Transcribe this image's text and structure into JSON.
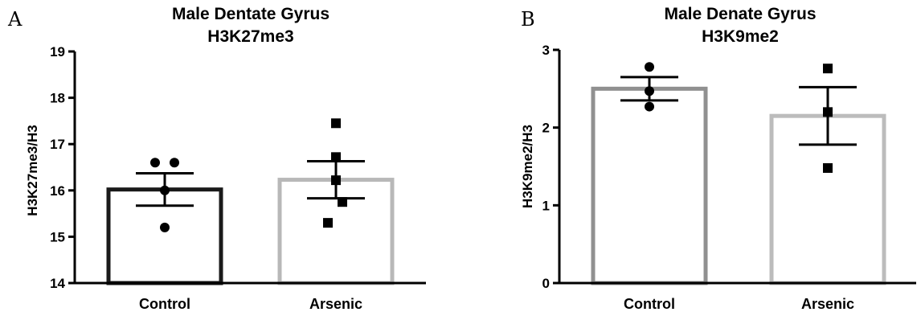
{
  "chart_data": [
    {
      "type": "bar",
      "panel_label": "A",
      "title": "Male Dentate Gyrus",
      "subtitle": "H3K27me3",
      "ylabel": "H3K27me3/H3",
      "xlabel": "",
      "ylim": [
        14,
        19
      ],
      "yticks": [
        14,
        15,
        16,
        17,
        18,
        19
      ],
      "categories": [
        "Control",
        "Arsenic"
      ],
      "values": [
        16.02,
        16.23
      ],
      "error": [
        0.35,
        0.4
      ],
      "bar_colors": [
        "#1a1a1a",
        "#b8b8b8"
      ],
      "markers": [
        "circle",
        "square"
      ],
      "points": [
        [
          16.6,
          16.6,
          16.0,
          15.2
        ],
        [
          17.45,
          16.72,
          16.22,
          15.75,
          15.3
        ]
      ]
    },
    {
      "type": "bar",
      "panel_label": "B",
      "title": "Male Denate Gyrus",
      "subtitle": "H3K9me2",
      "ylabel": "H3K9me2/H3",
      "xlabel": "",
      "ylim": [
        0,
        3
      ],
      "yticks": [
        0,
        1,
        2,
        3
      ],
      "categories": [
        "Control",
        "Arsenic"
      ],
      "values": [
        2.5,
        2.15
      ],
      "error": [
        0.15,
        0.37
      ],
      "bar_colors": [
        "#909090",
        "#bcbcbc"
      ],
      "markers": [
        "circle",
        "square"
      ],
      "points": [
        [
          2.78,
          2.47,
          2.27
        ],
        [
          2.76,
          2.2,
          1.48
        ]
      ]
    }
  ]
}
